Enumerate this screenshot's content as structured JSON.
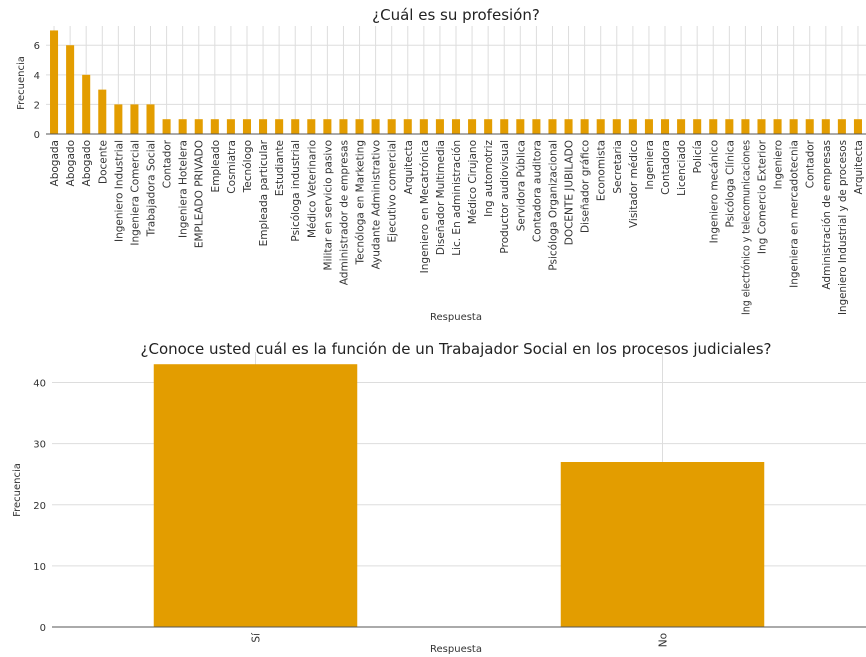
{
  "chart_data": [
    {
      "type": "bar",
      "title": "¿Cuál es su profesión?",
      "xlabel": "Respuesta",
      "ylabel": "Frecuencia",
      "ylim": [
        0,
        7.3
      ],
      "yticks": [
        0,
        2,
        4,
        6
      ],
      "grid": true,
      "color": "#e39d00",
      "categories": [
        "Abogada",
        "Abogado",
        "Abogado",
        "Docente",
        "Ingeniero Industrial",
        "Ingeniera Comercial",
        "Trabajadora Social",
        "Contador",
        "Ingeniera Hotelera",
        "EMPLEADO PRIVADO",
        "Empleado",
        "Cosmiatra",
        "Tecnólogo",
        "Empleada particular",
        "Estudiante",
        "Psicóloga industrial",
        "Médico Veterinario",
        "Militar en servicio pasivo",
        "Administrador de empresas",
        "Tecnóloga en Marketing",
        "Ayudante Administrativo",
        "Ejecutivo comercial",
        "Arquitecta",
        "Ingeniero en Mecatrónica",
        "Diseñador Multimedia",
        "Lic. En administración",
        "Médico Cirujano",
        "Ing automotriz",
        "Productor audiovisual",
        "Servidora Pública",
        "Contadora auditora",
        "Psicóloga Organizacional",
        "DOCENTE JUBILADO",
        "Diseñador gráfico",
        "Economista",
        "Secretaria",
        "Visitador médico",
        "Ingeniera",
        "Contadora",
        "Licenciado",
        "Policía",
        "Ingeniero mecánico",
        "Psicóloga Clínica",
        "Ing electrónico y telecomunicaciones",
        "Ing Comercio Exterior",
        "Ingeniero",
        "Ingeniera en mercadotecnia",
        "Contador",
        "Administración de empresas",
        "Ingeniero Industrial y de procesos",
        "Arquitecta"
      ],
      "values": [
        7,
        6,
        4,
        3,
        2,
        2,
        2,
        1,
        1,
        1,
        1,
        1,
        1,
        1,
        1,
        1,
        1,
        1,
        1,
        1,
        1,
        1,
        1,
        1,
        1,
        1,
        1,
        1,
        1,
        1,
        1,
        1,
        1,
        1,
        1,
        1,
        1,
        1,
        1,
        1,
        1,
        1,
        1,
        1,
        1,
        1,
        1,
        1,
        1,
        1,
        1
      ]
    },
    {
      "type": "bar",
      "title": "¿Conoce usted cuál es la función de un Trabajador Social en los procesos judiciales?",
      "xlabel": "Respuesta",
      "ylabel": "Frecuencia",
      "ylim": [
        0,
        45
      ],
      "yticks": [
        0,
        10,
        20,
        30,
        40
      ],
      "grid": true,
      "color": "#e39d00",
      "categories": [
        "Sí",
        "No"
      ],
      "values": [
        43,
        27
      ]
    }
  ]
}
